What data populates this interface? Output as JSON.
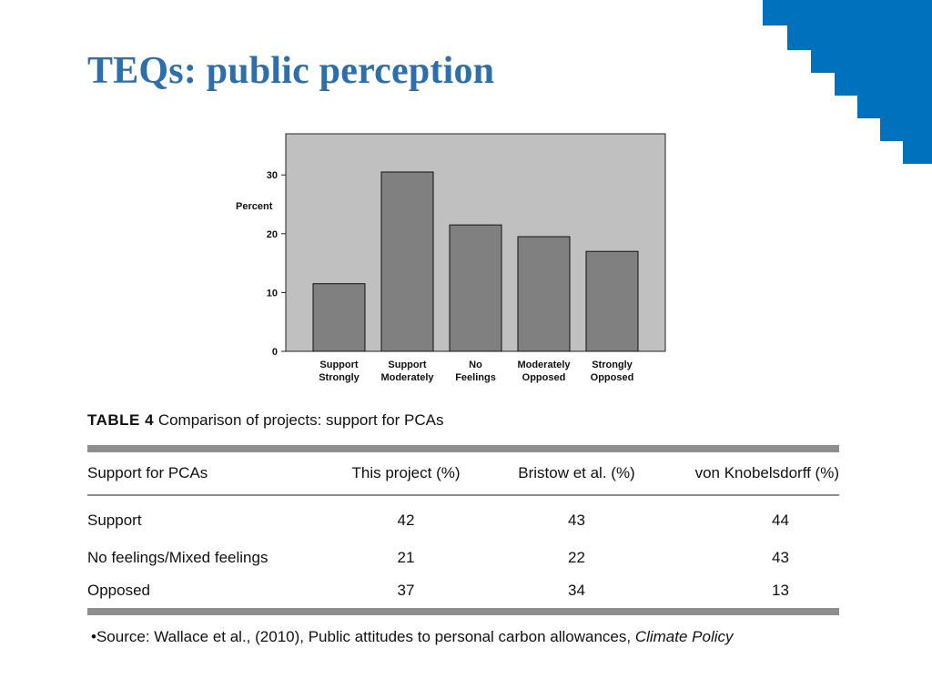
{
  "title": "TEQs: public perception",
  "colors": {
    "title": "#2d6faa",
    "corner": "#0071bc",
    "plot_bg": "#c0c0c0",
    "bar": "#808080"
  },
  "chart_data": {
    "type": "bar",
    "categories": [
      [
        "Support",
        "Strongly"
      ],
      [
        "Support",
        "Moderately"
      ],
      [
        "No",
        "Feelings"
      ],
      [
        "Moderately",
        "Opposed"
      ],
      [
        "Strongly",
        "Opposed"
      ]
    ],
    "values": [
      11.5,
      30.5,
      21.5,
      19.5,
      17.0
    ],
    "ylabel": "Percent",
    "yticks": [
      0,
      10,
      20,
      30
    ],
    "ylim": [
      0,
      37
    ],
    "grid": false
  },
  "table": {
    "label": "TABLE 4",
    "caption": "Comparison of projects: support for PCAs",
    "headers": [
      "Support for PCAs",
      "This project (%)",
      "Bristow et al. (%)",
      "von Knobelsdorff (%)"
    ],
    "rows": [
      [
        "Support",
        "42",
        "43",
        "44"
      ],
      [
        "No feelings/Mixed feelings",
        "21",
        "22",
        "43"
      ],
      [
        "Opposed",
        "37",
        "34",
        "13"
      ]
    ]
  },
  "source": {
    "text": "•Source: Wallace et al., (2010), Public attitudes to personal carbon allowances, ",
    "journal": "Climate Policy"
  }
}
